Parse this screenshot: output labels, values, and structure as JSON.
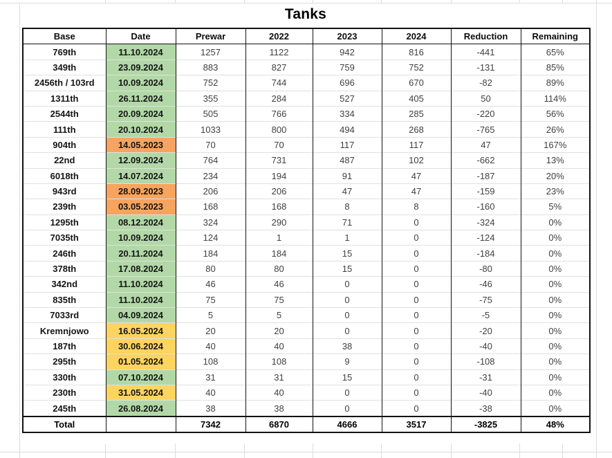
{
  "title": "Tanks",
  "colors": {
    "green": "#b2d8a7",
    "yellow": "#fcd45f",
    "orange": "#f6a45f",
    "table_border": "#111111",
    "grid_gray": "#dcdcdc",
    "number_text": "#3f3f3f"
  },
  "chart_data": {
    "type": "table",
    "title": "Tanks",
    "columns": [
      "Base",
      "Date",
      "Prewar",
      "2022",
      "2023",
      "2024",
      "Reduction",
      "Remaining"
    ],
    "rows": [
      {
        "base": "769th",
        "date": "11.10.2024",
        "date_color": "green",
        "values": [
          "1257",
          "1122",
          "942",
          "816",
          "-441",
          "65%"
        ]
      },
      {
        "base": "349th",
        "date": "23.09.2024",
        "date_color": "green",
        "values": [
          "883",
          "827",
          "759",
          "752",
          "-131",
          "85%"
        ]
      },
      {
        "base": "2456th / 103rd",
        "date": "10.09.2024",
        "date_color": "green",
        "values": [
          "752",
          "744",
          "696",
          "670",
          "-82",
          "89%"
        ]
      },
      {
        "base": "1311th",
        "date": "26.11.2024",
        "date_color": "green",
        "values": [
          "355",
          "284",
          "527",
          "405",
          "50",
          "114%"
        ]
      },
      {
        "base": "2544th",
        "date": "20.09.2024",
        "date_color": "green",
        "values": [
          "505",
          "766",
          "334",
          "285",
          "-220",
          "56%"
        ]
      },
      {
        "base": "111th",
        "date": "20.10.2024",
        "date_color": "green",
        "values": [
          "1033",
          "800",
          "494",
          "268",
          "-765",
          "26%"
        ]
      },
      {
        "base": "904th",
        "date": "14.05.2023",
        "date_color": "orange",
        "values": [
          "70",
          "70",
          "117",
          "117",
          "47",
          "167%"
        ]
      },
      {
        "base": "22nd",
        "date": "12.09.2024",
        "date_color": "green",
        "values": [
          "764",
          "731",
          "487",
          "102",
          "-662",
          "13%"
        ]
      },
      {
        "base": "6018th",
        "date": "14.07.2024",
        "date_color": "green",
        "values": [
          "234",
          "194",
          "91",
          "47",
          "-187",
          "20%"
        ]
      },
      {
        "base": "943rd",
        "date": "28.09.2023",
        "date_color": "orange",
        "values": [
          "206",
          "206",
          "47",
          "47",
          "-159",
          "23%"
        ]
      },
      {
        "base": "239th",
        "date": "03.05.2023",
        "date_color": "orange",
        "values": [
          "168",
          "168",
          "8",
          "8",
          "-160",
          "5%"
        ]
      },
      {
        "base": "1295th",
        "date": "08.12.2024",
        "date_color": "green",
        "values": [
          "324",
          "290",
          "71",
          "0",
          "-324",
          "0%"
        ]
      },
      {
        "base": "7035th",
        "date": "10.09.2024",
        "date_color": "green",
        "values": [
          "124",
          "1",
          "1",
          "0",
          "-124",
          "0%"
        ]
      },
      {
        "base": "246th",
        "date": "20.11.2024",
        "date_color": "green",
        "values": [
          "184",
          "184",
          "15",
          "0",
          "-184",
          "0%"
        ]
      },
      {
        "base": "378th",
        "date": "17.08.2024",
        "date_color": "green",
        "values": [
          "80",
          "80",
          "15",
          "0",
          "-80",
          "0%"
        ]
      },
      {
        "base": "342nd",
        "date": "11.10.2024",
        "date_color": "green",
        "values": [
          "46",
          "46",
          "0",
          "0",
          "-46",
          "0%"
        ]
      },
      {
        "base": "835th",
        "date": "11.10.2024",
        "date_color": "green",
        "values": [
          "75",
          "75",
          "0",
          "0",
          "-75",
          "0%"
        ]
      },
      {
        "base": "7033rd",
        "date": "04.09.2024",
        "date_color": "green",
        "values": [
          "5",
          "5",
          "0",
          "0",
          "-5",
          "0%"
        ]
      },
      {
        "base": "Kremnjowo",
        "date": "16.05.2024",
        "date_color": "yellow",
        "values": [
          "20",
          "20",
          "0",
          "0",
          "-20",
          "0%"
        ]
      },
      {
        "base": "187th",
        "date": "30.06.2024",
        "date_color": "yellow",
        "values": [
          "40",
          "40",
          "38",
          "0",
          "-40",
          "0%"
        ]
      },
      {
        "base": "295th",
        "date": "01.05.2024",
        "date_color": "yellow",
        "values": [
          "108",
          "108",
          "9",
          "0",
          "-108",
          "0%"
        ]
      },
      {
        "base": "330th",
        "date": "07.10.2024",
        "date_color": "green",
        "values": [
          "31",
          "31",
          "15",
          "0",
          "-31",
          "0%"
        ]
      },
      {
        "base": "230th",
        "date": "31.05.2024",
        "date_color": "yellow",
        "values": [
          "40",
          "40",
          "0",
          "0",
          "-40",
          "0%"
        ]
      },
      {
        "base": "245th",
        "date": "26.08.2024",
        "date_color": "green",
        "values": [
          "38",
          "38",
          "0",
          "0",
          "-38",
          "0%"
        ]
      }
    ],
    "total": {
      "label": "Total",
      "values": [
        "7342",
        "6870",
        "4666",
        "3517",
        "-3825",
        "48%"
      ]
    }
  }
}
